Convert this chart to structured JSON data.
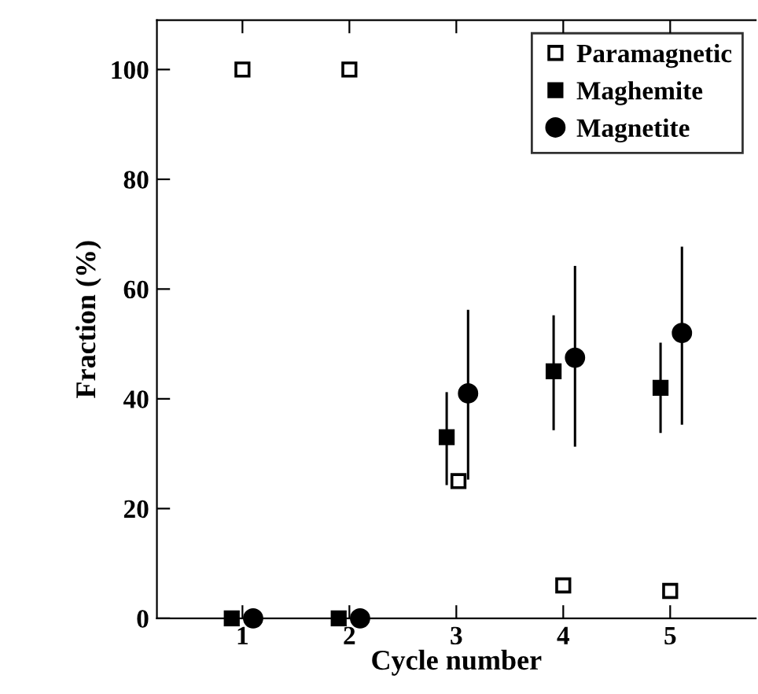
{
  "chart_data": {
    "type": "scatter",
    "xlabel": "Cycle number",
    "ylabel": "Fraction (%)",
    "xlim": [
      0.2,
      5.8
    ],
    "xticks": [
      1,
      2,
      3,
      4,
      5
    ],
    "ylim": [
      0,
      109
    ],
    "yticks": [
      0,
      20,
      40,
      60,
      80,
      100
    ],
    "grid": false,
    "legend": "top right",
    "series": [
      {
        "name": "Paramagnetic",
        "color": "#000000",
        "marker": "square",
        "x": [
          1,
          2,
          3.02,
          4,
          5
        ],
        "values": [
          100,
          100,
          25,
          6,
          5
        ]
      },
      {
        "name": "Maghemite",
        "color": "#000000",
        "marker": "square",
        "x": [
          0.9,
          1.9,
          2.91,
          3.91,
          4.91
        ],
        "values": [
          0,
          0,
          33,
          45,
          42
        ],
        "errors": [
          null,
          null,
          [
            24.5,
            41
          ],
          [
            34.5,
            55
          ],
          [
            34,
            50
          ]
        ]
      },
      {
        "name": "Magnetite",
        "color": "#000000",
        "marker": "circle",
        "x": [
          1.1,
          2.1,
          3.11,
          4.11,
          5.11
        ],
        "values": [
          0,
          0,
          41,
          47.5,
          52
        ],
        "errors": [
          null,
          null,
          [
            25.5,
            56
          ],
          [
            31.5,
            64
          ],
          [
            35.5,
            67.5
          ]
        ]
      }
    ]
  }
}
